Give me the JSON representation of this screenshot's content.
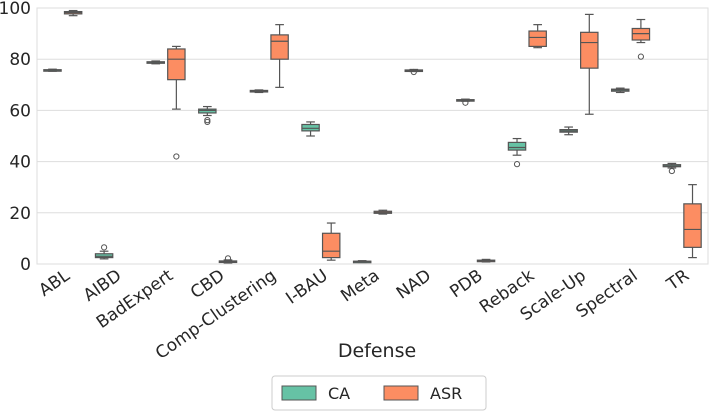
{
  "chart_data": {
    "type": "box",
    "title": "",
    "xlabel": "Defense",
    "ylabel": "",
    "ylim": [
      0,
      100
    ],
    "yticks": [
      0,
      20,
      40,
      60,
      80,
      100
    ],
    "grid": "horizontal",
    "legend_position": "bottom-center",
    "categories": [
      "ABL",
      "AIBD",
      "BadExpert",
      "CBD",
      "Comp-Clustering",
      "I-BAU",
      "Meta",
      "NAD",
      "PDB",
      "Reback",
      "Scale-Up",
      "Spectral",
      "TR"
    ],
    "series": [
      {
        "name": "CA",
        "color": "#66c2a5",
        "boxes": [
          {
            "category": "ABL",
            "whislo": 75.3,
            "q1": 75.5,
            "med": 75.7,
            "q3": 75.9,
            "whishi": 76.1,
            "fliers": []
          },
          {
            "category": "AIBD",
            "whislo": 2.0,
            "q1": 2.5,
            "med": 3.0,
            "q3": 4.0,
            "whishi": 5.0,
            "fliers": [
              6.5
            ]
          },
          {
            "category": "BadExpert",
            "whislo": 78.2,
            "q1": 78.5,
            "med": 78.8,
            "q3": 79.0,
            "whishi": 79.3,
            "fliers": []
          },
          {
            "category": "CBD",
            "whislo": 58.0,
            "q1": 59.0,
            "med": 60.0,
            "q3": 60.5,
            "whishi": 61.5,
            "fliers": [
              55.5,
              56.2
            ]
          },
          {
            "category": "Comp-Clustering",
            "whislo": 67.0,
            "q1": 67.2,
            "med": 67.5,
            "q3": 67.8,
            "whishi": 68.0,
            "fliers": []
          },
          {
            "category": "I-BAU",
            "whislo": 50.0,
            "q1": 52.0,
            "med": 53.0,
            "q3": 54.5,
            "whishi": 55.5,
            "fliers": []
          },
          {
            "category": "Meta",
            "whislo": 0.6,
            "q1": 0.8,
            "med": 1.0,
            "q3": 1.1,
            "whishi": 1.3,
            "fliers": []
          },
          {
            "category": "NAD",
            "whislo": 75.2,
            "q1": 75.4,
            "med": 75.6,
            "q3": 75.8,
            "whishi": 76.0,
            "fliers": [
              75.0
            ]
          },
          {
            "category": "PDB",
            "whislo": 63.6,
            "q1": 63.8,
            "med": 64.0,
            "q3": 64.2,
            "whishi": 64.4,
            "fliers": [
              63.0
            ]
          },
          {
            "category": "Reback",
            "whislo": 42.5,
            "q1": 44.5,
            "med": 45.5,
            "q3": 47.5,
            "whishi": 49.0,
            "fliers": [
              39.0
            ]
          },
          {
            "category": "Scale-Up",
            "whislo": 50.5,
            "q1": 51.5,
            "med": 52.0,
            "q3": 52.5,
            "whishi": 53.5,
            "fliers": []
          },
          {
            "category": "Spectral",
            "whislo": 67.0,
            "q1": 67.5,
            "med": 68.0,
            "q3": 68.3,
            "whishi": 68.7,
            "fliers": []
          },
          {
            "category": "TR",
            "whislo": 37.5,
            "q1": 38.0,
            "med": 38.3,
            "q3": 38.8,
            "whishi": 39.3,
            "fliers": [
              36.3
            ]
          }
        ]
      },
      {
        "name": "ASR",
        "color": "#fc8d62",
        "boxes": [
          {
            "category": "ABL",
            "whislo": 97.0,
            "q1": 97.7,
            "med": 98.2,
            "q3": 98.6,
            "whishi": 99.0,
            "fliers": []
          },
          {
            "category": "AIBD",
            "whislo": 0,
            "q1": 0,
            "med": 0,
            "q3": 0,
            "whishi": 0,
            "fliers": []
          },
          {
            "category": "BadExpert",
            "whislo": 60.5,
            "q1": 72.0,
            "med": 80.0,
            "q3": 84.0,
            "whishi": 85.0,
            "fliers": [
              42.0
            ]
          },
          {
            "category": "CBD",
            "whislo": 0.4,
            "q1": 0.6,
            "med": 0.9,
            "q3": 1.2,
            "whishi": 1.6,
            "fliers": [
              2.2
            ]
          },
          {
            "category": "Comp-Clustering",
            "whislo": 69.0,
            "q1": 80.0,
            "med": 87.0,
            "q3": 89.5,
            "whishi": 93.5,
            "fliers": []
          },
          {
            "category": "I-BAU",
            "whislo": 1.5,
            "q1": 2.5,
            "med": 5.0,
            "q3": 12.0,
            "whishi": 16.0,
            "fliers": []
          },
          {
            "category": "Meta",
            "whislo": 19.5,
            "q1": 19.8,
            "med": 20.2,
            "q3": 20.6,
            "whishi": 21.0,
            "fliers": []
          },
          {
            "category": "NAD",
            "whislo": 0,
            "q1": 0,
            "med": 0,
            "q3": 0,
            "whishi": 0,
            "fliers": []
          },
          {
            "category": "PDB",
            "whislo": 0.8,
            "q1": 1.0,
            "med": 1.3,
            "q3": 1.5,
            "whishi": 1.8,
            "fliers": []
          },
          {
            "category": "Reback",
            "whislo": 84.5,
            "q1": 85.0,
            "med": 88.5,
            "q3": 91.0,
            "whishi": 93.5,
            "fliers": []
          },
          {
            "category": "Scale-Up",
            "whislo": 58.5,
            "q1": 76.5,
            "med": 86.5,
            "q3": 90.5,
            "whishi": 97.5,
            "fliers": []
          },
          {
            "category": "Spectral",
            "whislo": 86.5,
            "q1": 87.5,
            "med": 90.0,
            "q3": 92.0,
            "whishi": 95.5,
            "fliers": [
              81.0
            ]
          },
          {
            "category": "TR",
            "whislo": 2.5,
            "q1": 6.5,
            "med": 13.5,
            "q3": 23.5,
            "whishi": 31.0,
            "fliers": []
          }
        ]
      }
    ],
    "extra_boxes": [
      {
        "category": "PDB",
        "series": "ASR",
        "whislo": 1.0,
        "q1": 1.0,
        "med": 2.0,
        "q3": 3.0,
        "whishi": 4.5,
        "fliers": []
      }
    ]
  }
}
